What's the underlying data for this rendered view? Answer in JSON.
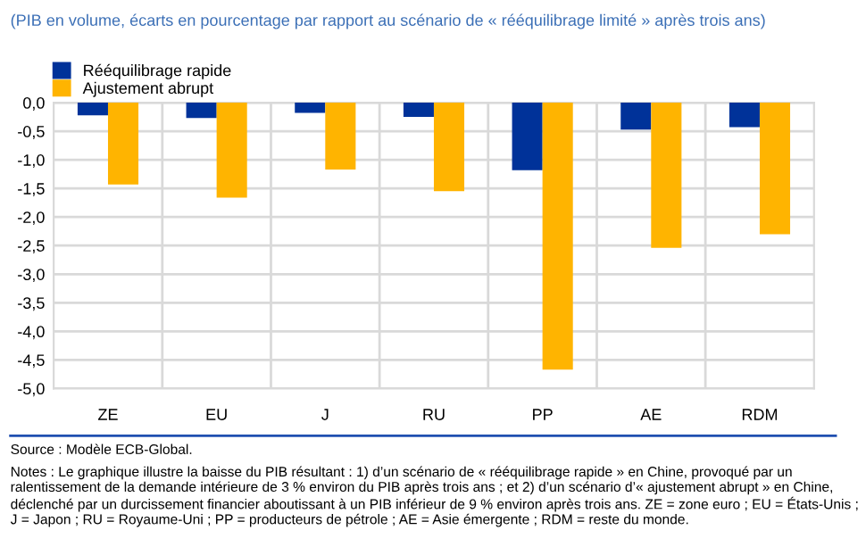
{
  "chart_data": {
    "type": "bar",
    "subtitle": "(PIB en volume, écarts en pourcentage par rapport au scénario de « rééquilibrage limité » après trois ans)",
    "categories": [
      "ZE",
      "EU",
      "J",
      "RU",
      "PP",
      "AE",
      "RDM"
    ],
    "series": [
      {
        "name": "Rééquilibrage rapide",
        "color": "#003299",
        "values": [
          -0.22,
          -0.27,
          -0.18,
          -0.25,
          -1.18,
          -0.47,
          -0.43
        ]
      },
      {
        "name": "Ajustement abrupt",
        "color": "#ffb400",
        "values": [
          -1.43,
          -1.66,
          -1.17,
          -1.55,
          -4.67,
          -2.54,
          -2.3
        ]
      }
    ],
    "ylim": [
      -5,
      0
    ],
    "yticks": [
      {
        "value": 0,
        "label": "0,0"
      },
      {
        "value": -0.5,
        "label": "-0,5"
      },
      {
        "value": -1,
        "label": "-1,0"
      },
      {
        "value": -1.5,
        "label": "-1,5"
      },
      {
        "value": -2,
        "label": "-2,0"
      },
      {
        "value": -2.5,
        "label": "-2,5"
      },
      {
        "value": -3,
        "label": "-3,0"
      },
      {
        "value": -3.5,
        "label": "-3,5"
      },
      {
        "value": -4,
        "label": "-4,0"
      },
      {
        "value": -4.5,
        "label": "-4,5"
      },
      {
        "value": -5,
        "label": "-5,0"
      }
    ],
    "grid": true,
    "legend": "top left",
    "annotations": [
      "Source : Modèle ECB-Global.",
      "Notes : Le graphique illustre la baisse du PIB résultant : 1) d’un scénario de « rééquilibrage rapide » en Chine, provoqué par un ralentissement de la demande intérieure de 3 % environ du PIB après trois ans ; et 2) d’un scénario d’« ajustement abrupt » en Chine, déclenché par un durcissement financier aboutissant à un PIB inférieur de 9 % environ après trois ans. ZE = zone euro ; EU = États-Unis ; J = Japon ; RU = Royaume-Uni ; PP = producteurs de pétrole ; AE = Asie émergente ; RDM = reste du monde."
    ]
  }
}
